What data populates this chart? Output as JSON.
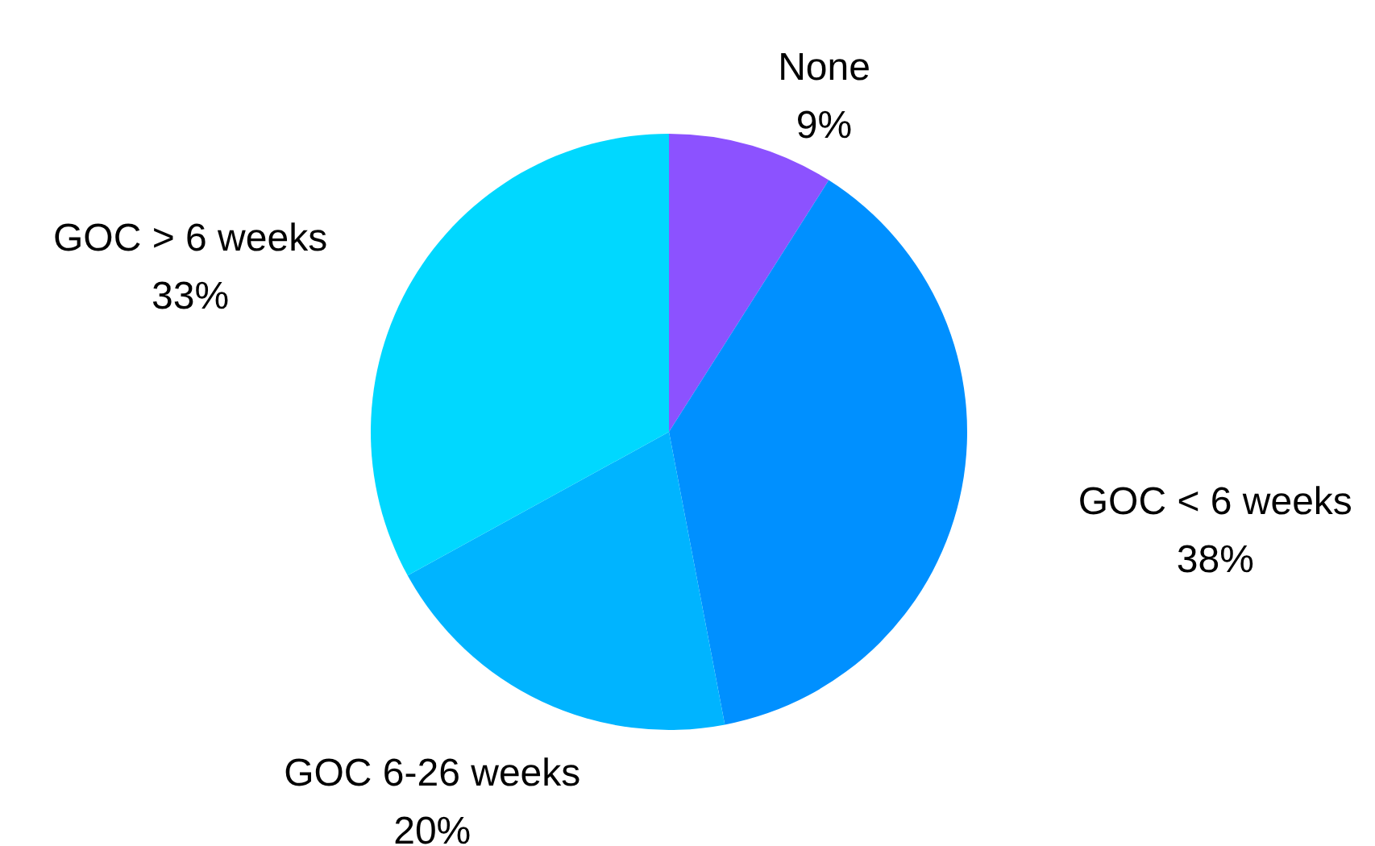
{
  "chart_data": {
    "type": "pie",
    "categories": [
      "None",
      "GOC < 6 weeks",
      "GOC 6-26 weeks",
      "GOC > 6 weeks"
    ],
    "values": [
      9,
      38,
      20,
      33
    ],
    "value_labels": [
      "9%",
      "38%",
      "20%",
      "33%"
    ],
    "colors": [
      "#8c52ff",
      "#0090ff",
      "#00b4ff",
      "#00d8ff"
    ]
  }
}
